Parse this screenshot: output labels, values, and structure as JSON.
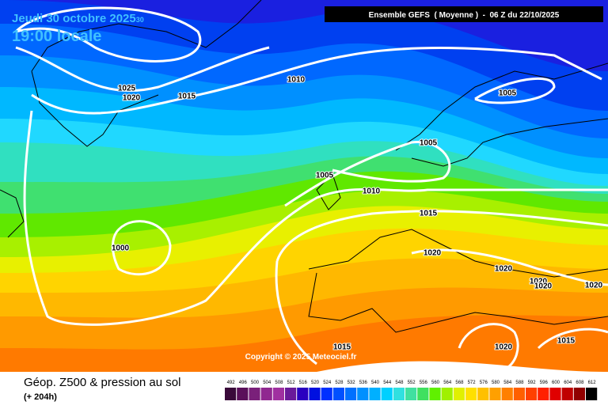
{
  "header": {
    "date": "Jeudi 30 octobre 2025",
    "date_suffix": "30",
    "time": "19:00 locale",
    "model": "Ensemble GEFS  ( Moyenne )  -  06 Z du 22/10/2025"
  },
  "isobar_labels": [
    "1025",
    "1020",
    "1015",
    "1010",
    "1005",
    "1005",
    "1005",
    "1010",
    "1015",
    "1000",
    "1020",
    "1020",
    "1020",
    "1020",
    "1020",
    "1015",
    "1020",
    "1015"
  ],
  "copyright": "Copyright © 2025 Meteociel.fr",
  "footer": {
    "title": "Géop. Z500 & pression au sol",
    "lead": "(+ 204h)"
  },
  "scale": {
    "labels": [
      "492",
      "496",
      "500",
      "504",
      "508",
      "512",
      "516",
      "520",
      "524",
      "528",
      "532",
      "536",
      "540",
      "544",
      "548",
      "552",
      "556",
      "560",
      "564",
      "568",
      "572",
      "576",
      "580",
      "584",
      "588",
      "592",
      "596",
      "600",
      "604",
      "608",
      "612"
    ],
    "colors": [
      "#3a0a3a",
      "#5a105a",
      "#7a207a",
      "#902890",
      "#a030a0",
      "#6a1a9a",
      "#2a00c0",
      "#0010e0",
      "#0030ff",
      "#0050ff",
      "#0070ff",
      "#0090ff",
      "#00b0ff",
      "#00d0ff",
      "#30e0e0",
      "#40e0a0",
      "#40e060",
      "#60f000",
      "#a0f000",
      "#e0f000",
      "#ffe000",
      "#ffc000",
      "#ffa000",
      "#ff8000",
      "#ff6000",
      "#ff4000",
      "#ff2000",
      "#e00000",
      "#c00000",
      "#900000",
      "#000000"
    ]
  }
}
